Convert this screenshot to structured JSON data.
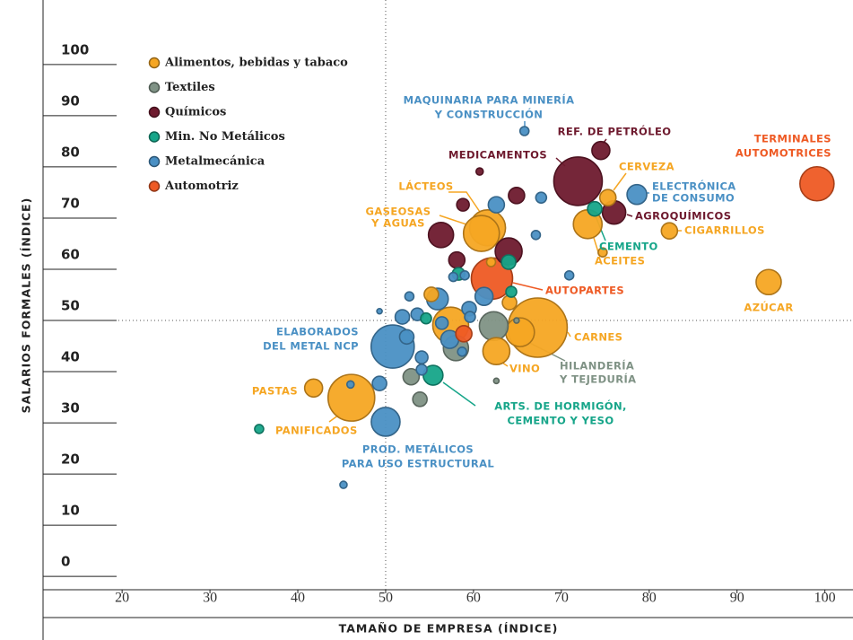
{
  "chart_data": {
    "type": "scatter",
    "x_label": "TAMAÑO DE EMPRESA (ÍNDICE)",
    "y_label": "SALARIOS FORMALES (ÍNDICE)",
    "xlim": [
      11,
      103.2
    ],
    "ylim": [
      -2.6,
      112.6
    ],
    "xticks": [
      20,
      30,
      40,
      50,
      60,
      70,
      80,
      90,
      100
    ],
    "yticks": [
      0,
      10,
      20,
      30,
      40,
      50,
      60,
      70,
      80,
      90,
      100
    ],
    "reference_lines": {
      "x": 50,
      "y": 50
    },
    "legend": "upper left",
    "series": [
      {
        "name": "Alimentos, bebidas y tabaco",
        "color": "#f5a623",
        "x": [
          93.6,
          82.3,
          75.3,
          73.0,
          74.7,
          61.6,
          60.9,
          67.3,
          65.3,
          62.6,
          57.4,
          55.2,
          41.8,
          46.1,
          64.1,
          62.0
        ],
        "values": [
          57.5,
          67.5,
          74.0,
          68.8,
          63.3,
          68.1,
          67.0,
          48.6,
          47.7,
          44.0,
          49.1,
          55.1,
          36.8,
          34.9,
          53.5,
          61.4
        ],
        "sizes": [
          14,
          9,
          9,
          16,
          5,
          20,
          20,
          33,
          16,
          15,
          20,
          8,
          10,
          26,
          8,
          5
        ]
      },
      {
        "name": "Textiles",
        "color": "#7f9285",
        "x": [
          62.3,
          58.0,
          52.9,
          53.9,
          62.6,
          64.9
        ],
        "values": [
          48.9,
          44.6,
          39.0,
          34.6,
          38.2,
          50.0
        ],
        "sizes": [
          16,
          14,
          9,
          8,
          3,
          3
        ]
      },
      {
        "name": "Químicos",
        "color": "#6e1a2e",
        "x": [
          74.5,
          71.9,
          76.0,
          64.9,
          60.7,
          58.8,
          56.3,
          64.0,
          58.1
        ],
        "values": [
          83.2,
          77.2,
          71.1,
          74.4,
          79.1,
          72.6,
          66.7,
          63.5,
          61.8
        ],
        "sizes": [
          10,
          27,
          13,
          9,
          4,
          7,
          14,
          15,
          9
        ]
      },
      {
        "name": "Min. No Metálicos",
        "color": "#16a589",
        "x": [
          73.8,
          55.4,
          35.6,
          64.0,
          58.3,
          64.3,
          54.6
        ],
        "values": [
          71.8,
          39.3,
          28.8,
          61.4,
          59.1,
          55.6,
          50.4
        ],
        "sizes": [
          8,
          11,
          5,
          8,
          7,
          6,
          6
        ]
      },
      {
        "name": "Metalmecánica",
        "color": "#4a90c4",
        "x": [
          78.6,
          65.8,
          62.6,
          67.7,
          67.1,
          70.9,
          50.8,
          50.0,
          55.9,
          61.2,
          59.5,
          56.4,
          57.3,
          53.6,
          51.9,
          52.4,
          54.1,
          54.1,
          49.3,
          46.0,
          45.2,
          59.6,
          59.0,
          57.7,
          58.7,
          52.7,
          49.3
        ],
        "values": [
          74.6,
          87.0,
          72.6,
          74.0,
          66.7,
          58.8,
          44.9,
          30.2,
          54.2,
          54.7,
          52.3,
          49.5,
          46.3,
          51.2,
          50.7,
          46.8,
          42.8,
          40.4,
          37.7,
          37.5,
          17.9,
          50.7,
          58.8,
          58.5,
          43.9,
          54.7,
          51.8
        ],
        "sizes": [
          11,
          5,
          9,
          6,
          5,
          5,
          24,
          16,
          12,
          10,
          8,
          7,
          10,
          7,
          8,
          8,
          7,
          6,
          8,
          4,
          4,
          6,
          5,
          5,
          5,
          5,
          3
        ]
      },
      {
        "name": "Automotriz",
        "color": "#ee5a24",
        "x": [
          99.1,
          62.1,
          58.9
        ],
        "values": [
          76.7,
          58.2,
          47.4
        ],
        "sizes": [
          19,
          23,
          9
        ]
      }
    ],
    "annotations": [
      [
        "MAQUINARIA PARA MINERÍA",
        "Y CONSTRUCCIÓN"
      ],
      [
        "REF. DE PETRÓLEO"
      ],
      [
        "TERMINALES",
        "AUTOMOTRICES"
      ],
      [
        "MEDICAMENTOS"
      ],
      [
        "CERVEZA"
      ],
      [
        "ELECTRÓNICA",
        "DE CONSUMO"
      ],
      [
        "LÁCTEOS"
      ],
      [
        "GASEOSAS",
        "Y AGUAS"
      ],
      [
        "AGROQUÍMICOS"
      ],
      [
        "CIGARRILLOS"
      ],
      [
        "CEMENTO"
      ],
      [
        "ACEITES"
      ],
      [
        "AUTOPARTES"
      ],
      [
        "AZÚCAR"
      ],
      [
        "ELABORADOS",
        "DEL METAL NCP"
      ],
      [
        "CARNES"
      ],
      [
        "HILANDERÍA",
        "Y TEJEDURÍA"
      ],
      [
        "VINO"
      ],
      [
        "PASTAS"
      ],
      [
        "ARTS. DE HORMIGÓN,",
        "CEMENTO Y YESO"
      ],
      [
        "PANIFICADOS"
      ],
      [
        "PROD. METÁLICOS",
        "PARA USO ESTRUCTURAL"
      ]
    ]
  }
}
